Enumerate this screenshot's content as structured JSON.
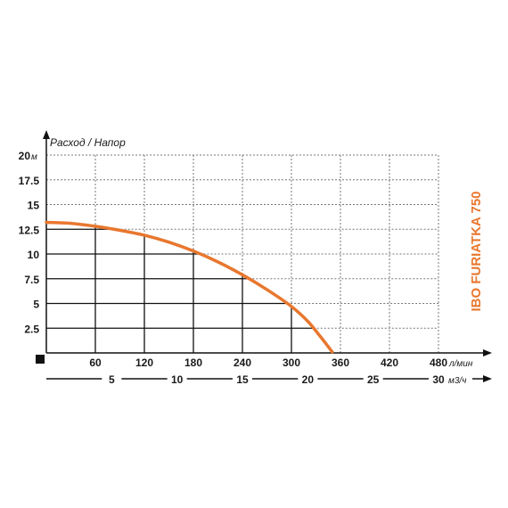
{
  "chart_data": {
    "type": "line",
    "title": "IBO FURIATKA 750",
    "ylabel": "Расход / Напор",
    "y_unit": "м",
    "x_unit": "л/мин",
    "x2_unit": "м3/ч",
    "ylim": [
      0,
      20
    ],
    "xlim": [
      0,
      480
    ],
    "y_ticks": [
      "2.5",
      "5",
      "7.5",
      "10",
      "12.5",
      "15",
      "17.5",
      "20"
    ],
    "y_tick_values": [
      2.5,
      5,
      7.5,
      10,
      12.5,
      15,
      17.5,
      20
    ],
    "x_ticks": [
      "60",
      "120",
      "180",
      "240",
      "300",
      "360",
      "420",
      "480"
    ],
    "x_tick_values": [
      60,
      120,
      180,
      240,
      300,
      360,
      420,
      480
    ],
    "x2_ticks": [
      "5",
      "10",
      "15",
      "20",
      "25",
      "30"
    ],
    "x2_tick_values": [
      5,
      10,
      15,
      20,
      25,
      30
    ],
    "x2lim": [
      0,
      30
    ],
    "grid": true,
    "series": [
      {
        "x": [
          0,
          30,
          60,
          90,
          120,
          150,
          180,
          210,
          240,
          270,
          300,
          320,
          335,
          350
        ],
        "y": [
          13.2,
          13.1,
          12.8,
          12.4,
          11.9,
          11.2,
          10.3,
          9.2,
          7.9,
          6.4,
          4.7,
          3.2,
          1.7,
          0.1
        ]
      }
    ],
    "colors": {
      "curve": "#e8772e",
      "grid_dashed": "#777777",
      "grid_solid": "#111111",
      "title": "#e8772e"
    }
  }
}
